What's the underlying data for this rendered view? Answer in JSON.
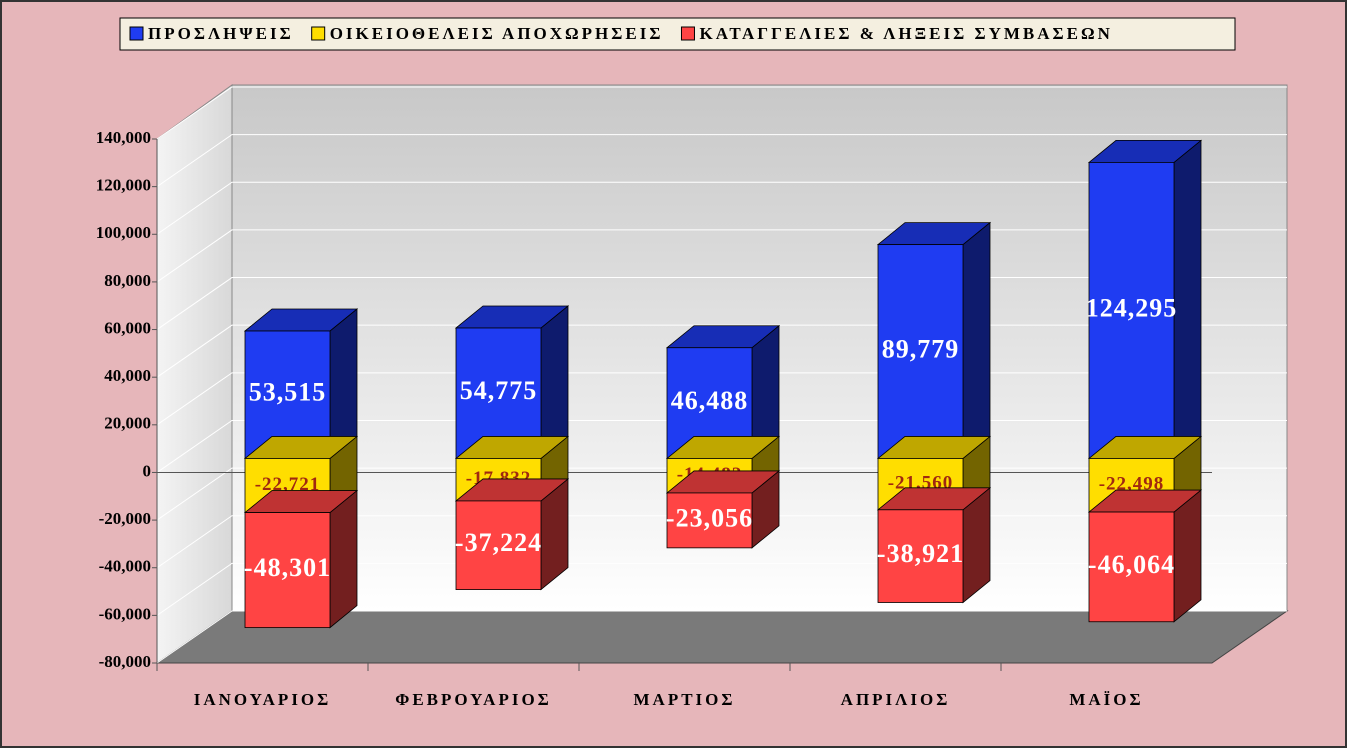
{
  "chart_data": {
    "type": "stacked_bar_3d",
    "categories": [
      "ΙΑΝΟΥΑΡΙΟΣ",
      "ΦΕΒΡΟΥΑΡΙΟΣ",
      "ΜΑΡΤΙΟΣ",
      "ΑΠΡΙΛΙΟΣ",
      "ΜΑΪΟΣ"
    ],
    "series": [
      {
        "name": "ΠΡΟΣΛΗΨΕΙΣ",
        "color": "#1f3cf2",
        "values": [
          53515,
          54775,
          46488,
          89779,
          124295
        ],
        "value_labels": [
          "53,515",
          "54,775",
          "46,488",
          "89,779",
          "124,295"
        ]
      },
      {
        "name": "ΟΙΚΕΙΟΘΕΛΕΙΣ ΑΠΟΧΩΡΗΣΕΙΣ",
        "color": "#ffde00",
        "values": [
          -22721,
          -17832,
          -14482,
          -21560,
          -22498
        ],
        "value_labels": [
          "-22,721",
          "-17,832",
          "-14,482",
          "-21,560",
          "-22,498"
        ]
      },
      {
        "name": "ΚΑΤΑΓΓΕΛΙΕΣ & ΛΗΞΕΙΣ ΣΥΜΒΑΣΕΩΝ",
        "color": "#ff4444",
        "values": [
          -48301,
          -37224,
          -23056,
          -38921,
          -46064
        ],
        "value_labels": [
          "-48,301",
          "-37,224",
          "-23,056",
          "-38,921",
          "-46,064"
        ]
      }
    ],
    "ylim": [
      -80000,
      140000
    ],
    "yticks": [
      {
        "value": -80000,
        "label": "-80,000"
      },
      {
        "value": -60000,
        "label": "-60,000"
      },
      {
        "value": -40000,
        "label": "-40,000"
      },
      {
        "value": -20000,
        "label": "-20,000"
      },
      0,
      {
        "value": 20000,
        "label": "20,000"
      },
      {
        "value": 40000,
        "label": "40,000"
      },
      {
        "value": 60000,
        "label": "60,000"
      },
      {
        "value": 80000,
        "label": "80,000"
      },
      {
        "value": 100000,
        "label": "100,000"
      },
      {
        "value": 120000,
        "label": "120,000"
      },
      {
        "value": 140000,
        "label": "140,000"
      }
    ],
    "grid": true,
    "legend": "top"
  }
}
